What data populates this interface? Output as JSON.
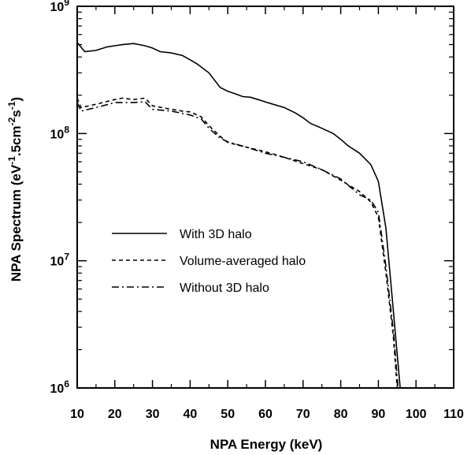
{
  "chart_data": {
    "type": "line",
    "title": "",
    "xlabel": "NPA Energy (keV)",
    "ylabel": "NPA Spectrum (eV",
    "ylabel_parts": [
      {
        "text": "NPA Spectrum (eV",
        "sup": false
      },
      {
        "text": "-1",
        "sup": true
      },
      {
        "text": ".5cm",
        "sup": false
      },
      {
        "text": "-2",
        "sup": true
      },
      {
        "text": "s",
        "sup": false
      },
      {
        "text": "-1",
        "sup": true
      },
      {
        "text": ")",
        "sup": false
      }
    ],
    "xlim": [
      10,
      110
    ],
    "ylim": [
      1000000,
      1000000000
    ],
    "yscale": "log",
    "grid": false,
    "legend_position": "center-left",
    "x_ticks": [
      "10",
      "20",
      "30",
      "40",
      "50",
      "60",
      "70",
      "80",
      "90",
      "100",
      "110"
    ],
    "y_ticks": [
      {
        "base": "10",
        "exp": "6",
        "value": 1000000
      },
      {
        "base": "10",
        "exp": "7",
        "value": 10000000
      },
      {
        "base": "10",
        "exp": "8",
        "value": 100000000
      },
      {
        "base": "10",
        "exp": "9",
        "value": 1000000000
      }
    ],
    "series": [
      {
        "name": "With 3D halo",
        "style": "solid",
        "x": [
          10,
          12,
          15,
          18,
          20,
          22,
          25,
          28,
          30,
          32,
          35,
          38,
          40,
          42,
          45,
          48,
          50,
          52,
          54,
          56,
          58,
          60,
          62,
          65,
          68,
          70,
          72,
          75,
          78,
          80,
          82,
          85,
          88,
          90,
          92,
          94,
          95.8
        ],
        "y": [
          520000000,
          440000000,
          450000000,
          480000000,
          490000000,
          500000000,
          510000000,
          490000000,
          470000000,
          440000000,
          430000000,
          410000000,
          380000000,
          350000000,
          300000000,
          230000000,
          215000000,
          205000000,
          195000000,
          193000000,
          185000000,
          177000000,
          170000000,
          160000000,
          145000000,
          133000000,
          120000000,
          110000000,
          100000000,
          90000000,
          80000000,
          70000000,
          57000000,
          42000000,
          18000000,
          4000000,
          1000000
        ]
      },
      {
        "name": "Volume-averaged halo",
        "style": "dashed",
        "x": [
          10,
          11,
          15,
          20,
          22,
          25,
          28,
          30,
          35,
          38,
          40,
          43,
          45,
          48,
          50,
          55,
          60,
          65,
          70,
          75,
          80,
          85,
          88,
          90,
          92,
          94,
          95
        ],
        "y": [
          190000000,
          160000000,
          170000000,
          185000000,
          190000000,
          185000000,
          190000000,
          165000000,
          155000000,
          150000000,
          148000000,
          135000000,
          115000000,
          95000000,
          85000000,
          78000000,
          72000000,
          65000000,
          58000000,
          52000000,
          43000000,
          35000000,
          29000000,
          22000000,
          8000000,
          2500000,
          1000000
        ]
      },
      {
        "name": "Without 3D halo",
        "style": "dashdot",
        "x": [
          10,
          11,
          15,
          20,
          25,
          28,
          30,
          35,
          40,
          43,
          45,
          48,
          50,
          55,
          60,
          65,
          70,
          75,
          80,
          85,
          88,
          90,
          92,
          94,
          95.2
        ],
        "y": [
          175000000,
          150000000,
          160000000,
          175000000,
          175000000,
          178000000,
          155000000,
          150000000,
          140000000,
          130000000,
          110000000,
          92000000,
          86000000,
          78000000,
          70000000,
          65000000,
          60000000,
          52000000,
          44000000,
          33000000,
          30000000,
          24000000,
          9000000,
          2800000,
          1000000
        ]
      }
    ]
  }
}
